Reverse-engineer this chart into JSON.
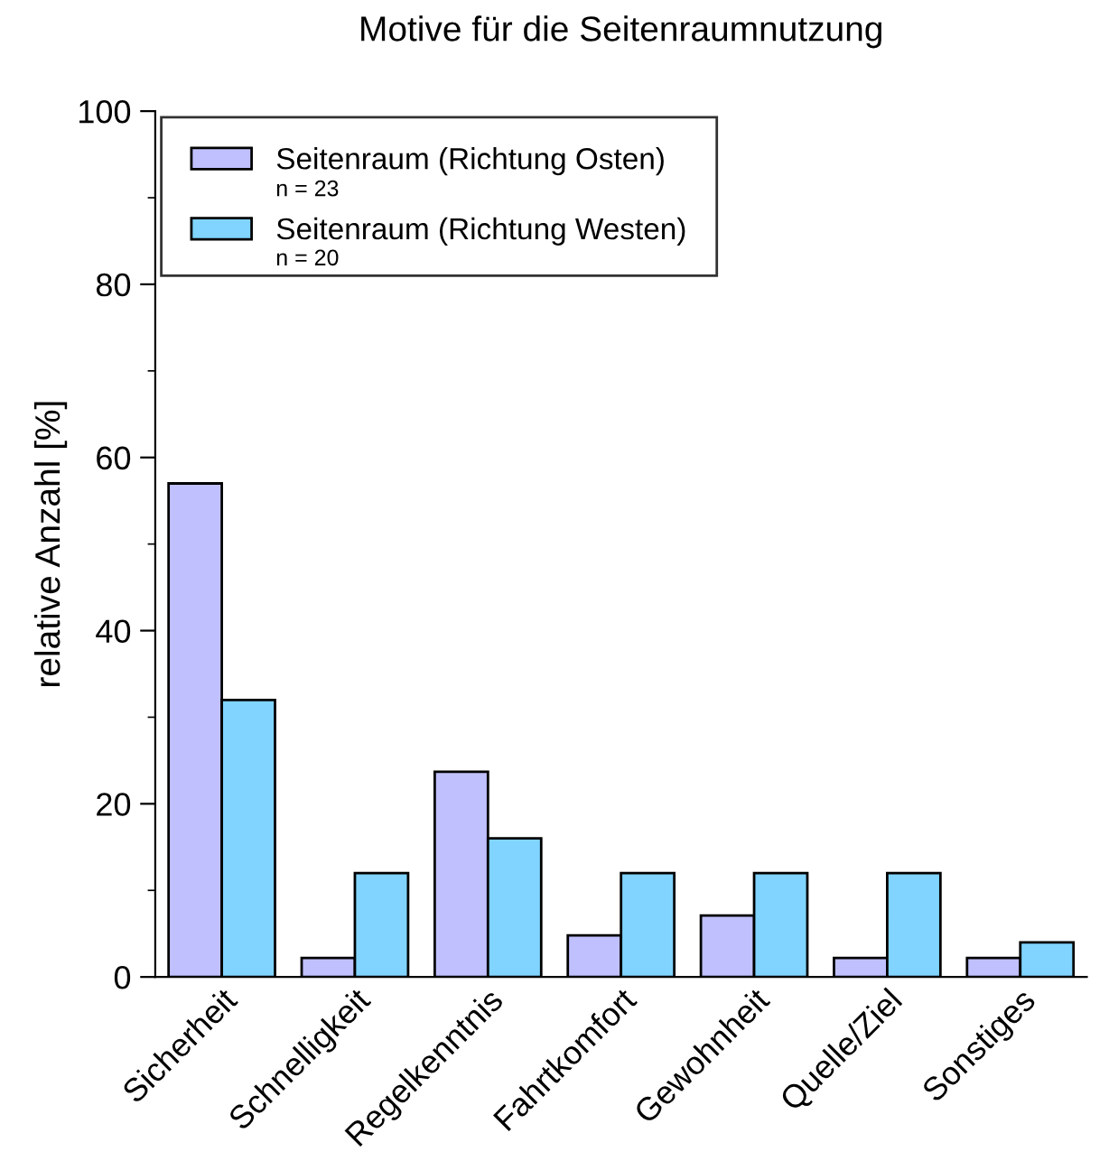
{
  "chart_data": {
    "type": "bar",
    "title": "Motive für die Seitenraumnutzung",
    "ylabel": "relative Anzahl [%]",
    "categories": [
      "Sicherheit",
      "Schnelligkeit",
      "Regelkenntnis",
      "Fahrtkomfort",
      "Gewohnheit",
      "Quelle/Ziel",
      "Sonstiges"
    ],
    "series": [
      {
        "name": "Seitenraum (Richtung Osten)",
        "color": "#c0c0ff",
        "values": [
          57,
          2.2,
          23.7,
          4.8,
          7.1,
          2.2,
          2.2
        ]
      },
      {
        "name": "Seitenraum (Richtung Westen)",
        "color": "#80d4ff",
        "values": [
          32,
          12,
          16,
          12,
          12,
          12,
          4
        ]
      }
    ],
    "annotations": [
      "n = 23",
      "n = 20"
    ],
    "ylim": [
      0,
      100
    ],
    "yticks": [
      0,
      20,
      40,
      60,
      80,
      100
    ],
    "grid": false,
    "legend": "top left"
  }
}
